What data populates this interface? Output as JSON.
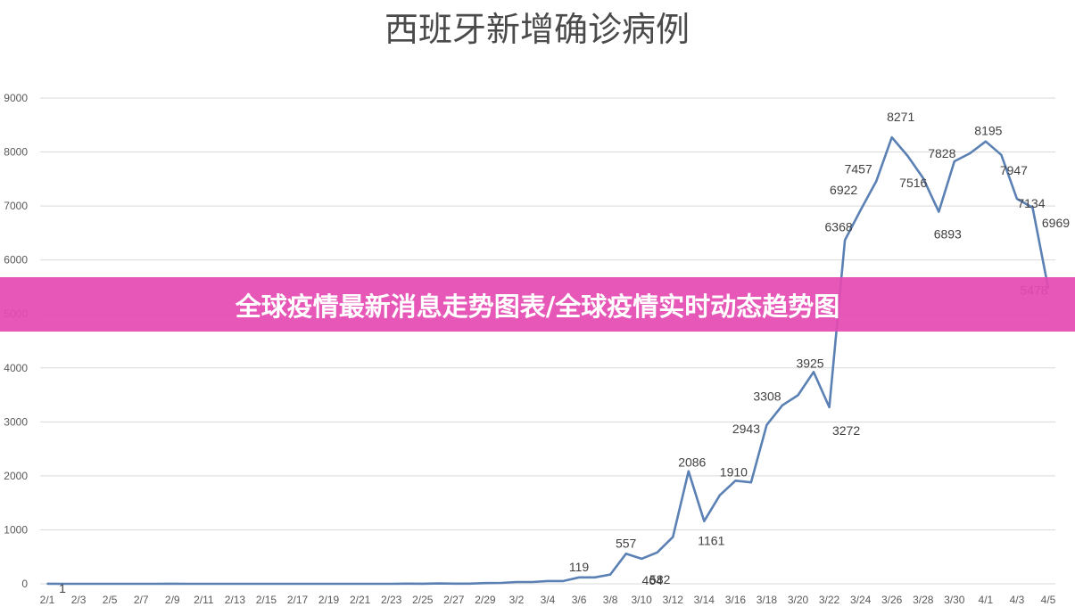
{
  "banner": {
    "text": "全球疫情最新消息走势图表/全球疫情实时动态趋势图"
  },
  "colors": {
    "line": "#5b80b4",
    "banner": "#e44ab2",
    "grid": "#d9d9d9"
  },
  "chart_data": {
    "type": "line",
    "title": "西班牙新增确诊病例",
    "xlabel": "",
    "ylabel": "",
    "ylim": [
      0,
      9000
    ],
    "yticks": [
      0,
      1000,
      2000,
      3000,
      4000,
      5000,
      6000,
      7000,
      8000,
      9000
    ],
    "grid": true,
    "legend": "none",
    "x": [
      "2/1",
      "2/2",
      "2/3",
      "2/4",
      "2/5",
      "2/6",
      "2/7",
      "2/8",
      "2/9",
      "2/10",
      "2/11",
      "2/12",
      "2/13",
      "2/14",
      "2/15",
      "2/16",
      "2/17",
      "2/18",
      "2/19",
      "2/20",
      "2/21",
      "2/22",
      "2/23",
      "2/24",
      "2/25",
      "2/26",
      "2/27",
      "2/28",
      "2/29",
      "3/1",
      "3/2",
      "3/3",
      "3/4",
      "3/5",
      "3/6",
      "3/7",
      "3/8",
      "3/9",
      "3/10",
      "3/11",
      "3/12",
      "3/13",
      "3/14",
      "3/15",
      "3/16",
      "3/17",
      "3/18",
      "3/19",
      "3/20",
      "3/21",
      "3/22",
      "3/23",
      "3/24",
      "3/25",
      "3/26",
      "3/27",
      "3/28",
      "3/29",
      "3/30",
      "3/31",
      "4/1",
      "4/2",
      "4/3",
      "4/4",
      "4/5"
    ],
    "xtick_labels": [
      "2/1",
      "2/3",
      "2/5",
      "2/7",
      "2/9",
      "2/11",
      "2/13",
      "2/15",
      "2/17",
      "2/19",
      "2/21",
      "2/23",
      "2/25",
      "2/27",
      "2/29",
      "3/2",
      "3/4",
      "3/6",
      "3/8",
      "3/10",
      "3/12",
      "3/14",
      "3/16",
      "3/18",
      "3/20",
      "3/22",
      "3/24",
      "3/26",
      "3/28",
      "3/30",
      "4/1",
      "4/3",
      "4/5"
    ],
    "series": [
      {
        "values": [
          1,
          0,
          0,
          0,
          0,
          0,
          0,
          0,
          1,
          0,
          0,
          0,
          0,
          0,
          0,
          0,
          0,
          0,
          0,
          0,
          0,
          0,
          0,
          4,
          2,
          6,
          3,
          4,
          13,
          17,
          33,
          33,
          52,
          51,
          119,
          119,
          172,
          557,
          464,
          582,
          869,
          2086,
          1161,
          1639,
          1910,
          1880,
          2943,
          3308,
          3494,
          3925,
          3272,
          6368,
          6922,
          7457,
          8271,
          7933,
          7516,
          6893,
          7828,
          7976,
          8195,
          7947,
          7134,
          6969,
          5478
        ]
      }
    ],
    "data_labels": [
      {
        "x": "2/1",
        "value": "1"
      },
      {
        "x": "3/6",
        "value": "119"
      },
      {
        "x": "3/9",
        "value": "557"
      },
      {
        "x": "3/10",
        "value": "464"
      },
      {
        "x": "3/11",
        "value": "582"
      },
      {
        "x": "3/13",
        "value": "2086"
      },
      {
        "x": "3/14",
        "value": "1161"
      },
      {
        "x": "3/16",
        "value": "1910"
      },
      {
        "x": "3/18",
        "value": "2943"
      },
      {
        "x": "3/19",
        "value": "3308"
      },
      {
        "x": "3/21",
        "value": "3925"
      },
      {
        "x": "3/22",
        "value": "3272"
      },
      {
        "x": "3/23",
        "value": "6368"
      },
      {
        "x": "3/24",
        "value": "6922"
      },
      {
        "x": "3/25",
        "value": "7457"
      },
      {
        "x": "3/26",
        "value": "8271"
      },
      {
        "x": "3/28",
        "value": "7516"
      },
      {
        "x": "3/29",
        "value": "6893"
      },
      {
        "x": "3/30",
        "value": "7828"
      },
      {
        "x": "4/1",
        "value": "8195"
      },
      {
        "x": "4/2",
        "value": "7947"
      },
      {
        "x": "4/3",
        "value": "7134"
      },
      {
        "x": "4/4",
        "value": "6969"
      },
      {
        "x": "4/5",
        "value": "5478"
      }
    ]
  }
}
